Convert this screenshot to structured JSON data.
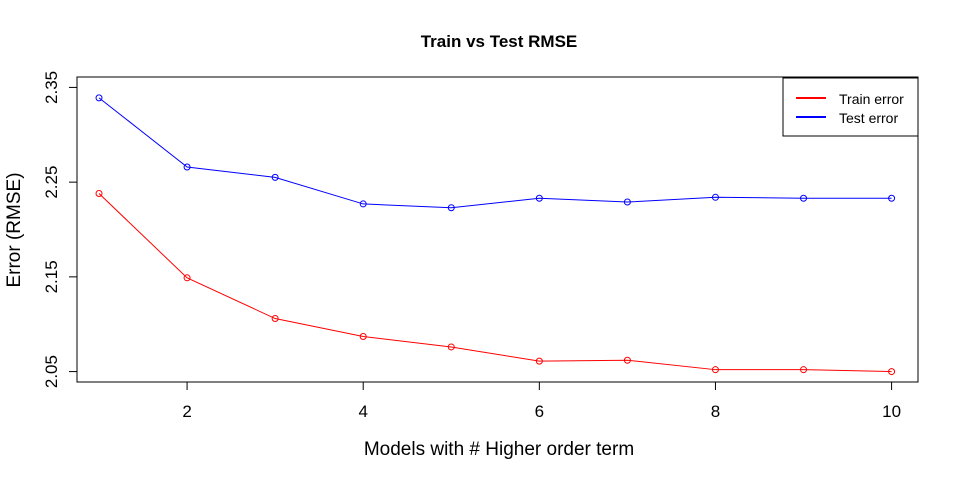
{
  "chart_data": {
    "type": "line",
    "title": "Train vs Test RMSE",
    "xlabel": "Models with # Higher order term",
    "ylabel": "Error (RMSE)",
    "x": [
      1,
      2,
      3,
      4,
      5,
      6,
      7,
      8,
      9,
      10
    ],
    "xlim": [
      0.75,
      10.3
    ],
    "ylim": [
      2.039,
      2.361
    ],
    "xticks": [
      2,
      4,
      6,
      8,
      10
    ],
    "yticks": [
      2.05,
      2.15,
      2.25,
      2.35
    ],
    "ytick_labels": [
      "2.05",
      "2.15",
      "2.25",
      "2.35"
    ],
    "grid": false,
    "legend_position": "top-right",
    "series": [
      {
        "name": "Train error",
        "color": "#ff0000",
        "values": [
          2.238,
          2.149,
          2.106,
          2.087,
          2.076,
          2.061,
          2.062,
          2.052,
          2.052,
          2.05
        ]
      },
      {
        "name": "Test error",
        "color": "#0000ff",
        "values": [
          2.339,
          2.266,
          2.255,
          2.227,
          2.223,
          2.233,
          2.229,
          2.234,
          2.233,
          2.233
        ]
      }
    ]
  }
}
